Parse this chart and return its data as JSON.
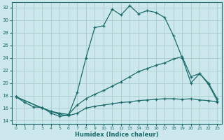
{
  "title": "",
  "xlabel": "Humidex (Indice chaleur)",
  "background_color": "#cce8ec",
  "grid_color": "#aacccc",
  "line_color": "#1a6b6b",
  "xlim": [
    -0.5,
    23.5
  ],
  "ylim": [
    13.5,
    32.8
  ],
  "xticks": [
    0,
    1,
    2,
    3,
    4,
    5,
    6,
    7,
    8,
    9,
    10,
    11,
    12,
    13,
    14,
    15,
    16,
    17,
    18,
    19,
    20,
    21,
    22,
    23
  ],
  "yticks": [
    14,
    16,
    18,
    20,
    22,
    24,
    26,
    28,
    30,
    32
  ],
  "line1_x": [
    0,
    1,
    2,
    3,
    4,
    5,
    6,
    7,
    8,
    9,
    10,
    11,
    12,
    13,
    14,
    15,
    16,
    17,
    18,
    19,
    20,
    21,
    22,
    23
  ],
  "line1_y": [
    17.8,
    16.9,
    16.2,
    16.1,
    15.2,
    14.7,
    14.9,
    18.5,
    24.0,
    28.8,
    29.1,
    31.7,
    30.8,
    32.3,
    31.0,
    31.5,
    31.2,
    30.4,
    27.5,
    24.0,
    20.0,
    21.5,
    19.8,
    17.2
  ],
  "line2_x": [
    0,
    3,
    4,
    5,
    6,
    7,
    8,
    9,
    10,
    11,
    12,
    13,
    14,
    15,
    16,
    17,
    18,
    19,
    20,
    21,
    22,
    23
  ],
  "line2_y": [
    17.8,
    16.0,
    15.5,
    15.2,
    15.0,
    16.5,
    17.5,
    18.2,
    18.8,
    19.5,
    20.2,
    21.0,
    21.8,
    22.3,
    22.8,
    23.2,
    23.8,
    24.2,
    21.0,
    21.5,
    20.0,
    17.5
  ],
  "line3_x": [
    0,
    3,
    4,
    5,
    6,
    7,
    8,
    9,
    10,
    11,
    12,
    13,
    14,
    15,
    16,
    17,
    18,
    19,
    20,
    21,
    22,
    23
  ],
  "line3_y": [
    17.8,
    16.0,
    15.5,
    15.0,
    14.8,
    15.2,
    16.0,
    16.3,
    16.5,
    16.7,
    16.9,
    17.0,
    17.2,
    17.3,
    17.4,
    17.5,
    17.5,
    17.4,
    17.5,
    17.3,
    17.2,
    17.0
  ]
}
